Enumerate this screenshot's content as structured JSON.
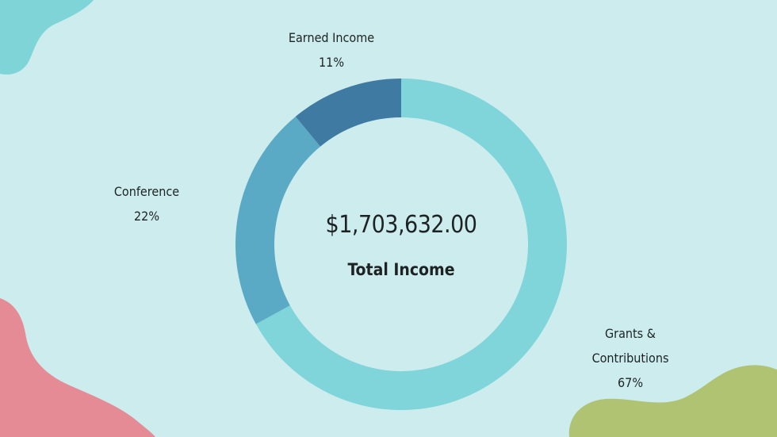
{
  "colors": {
    "background": "#cdeced",
    "blob_top_left": "#7fd4d8",
    "blob_bottom_left": "#e58b96",
    "blob_bottom_right": "#afc373"
  },
  "center": {
    "total": "$1,703,632.00",
    "caption": "Total Income"
  },
  "chart_data": {
    "type": "pie",
    "donut": true,
    "slices": [
      {
        "label": "Grants & Contributions",
        "label_lines": [
          "Grants &",
          "Contributions"
        ],
        "percent_text": "67%",
        "value": 67,
        "color": "#7fd5d9"
      },
      {
        "label": "Conference",
        "label_lines": [
          "Conference"
        ],
        "percent_text": "22%",
        "value": 22,
        "color": "#5aaac6"
      },
      {
        "label": "Earned Income",
        "label_lines": [
          "Earned Income"
        ],
        "percent_text": "11%",
        "value": 11,
        "color": "#3f7aa3"
      }
    ]
  }
}
